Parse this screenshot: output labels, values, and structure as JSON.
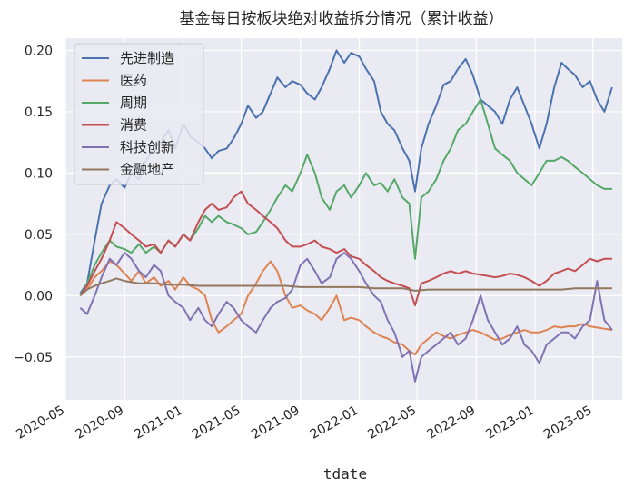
{
  "chart_data": {
    "type": "line",
    "title": "基金每日按板块绝对收益拆分情况（累计收益）",
    "xlabel": "tdate",
    "ylabel": "",
    "ylim": [
      -0.085,
      0.21
    ],
    "xlim": [
      "2020-05-01",
      "2023-07-01"
    ],
    "grid": true,
    "legend_position": "upper-left",
    "yticks": [
      -0.05,
      0.0,
      0.05,
      0.1,
      0.15,
      0.2
    ],
    "ytick_labels": [
      "−0.05",
      "0.00",
      "0.05",
      "0.10",
      "0.15",
      "0.20"
    ],
    "xticks": [
      "2020-05-01",
      "2020-09-01",
      "2021-01-01",
      "2021-05-01",
      "2021-09-01",
      "2022-01-01",
      "2022-05-01",
      "2022-09-01",
      "2023-01-01",
      "2023-05-01"
    ],
    "xtick_labels": [
      "2020-05",
      "2020-09",
      "2021-01",
      "2021-05",
      "2021-09",
      "2022-01",
      "2022-05",
      "2022-09",
      "2023-01",
      "2023-05"
    ],
    "series": [
      {
        "name": "先进制造",
        "color": "#4c72b0",
        "x": [
          "2020-06-01",
          "2020-06-15",
          "2020-07-01",
          "2020-07-15",
          "2020-08-01",
          "2020-08-15",
          "2020-09-01",
          "2020-09-15",
          "2020-10-01",
          "2020-10-15",
          "2020-11-01",
          "2020-11-15",
          "2020-12-01",
          "2020-12-15",
          "2021-01-01",
          "2021-01-15",
          "2021-02-01",
          "2021-02-15",
          "2021-03-01",
          "2021-03-15",
          "2021-04-01",
          "2021-04-15",
          "2021-05-01",
          "2021-05-15",
          "2021-06-01",
          "2021-06-15",
          "2021-07-01",
          "2021-07-15",
          "2021-08-01",
          "2021-08-15",
          "2021-09-01",
          "2021-09-15",
          "2021-10-01",
          "2021-10-15",
          "2021-11-01",
          "2021-11-15",
          "2021-12-01",
          "2021-12-15",
          "2022-01-01",
          "2022-01-15",
          "2022-02-01",
          "2022-02-15",
          "2022-03-01",
          "2022-03-15",
          "2022-04-01",
          "2022-04-15",
          "2022-04-27",
          "2022-05-10",
          "2022-05-25",
          "2022-06-10",
          "2022-06-25",
          "2022-07-10",
          "2022-07-25",
          "2022-08-10",
          "2022-08-25",
          "2022-09-10",
          "2022-09-25",
          "2022-10-10",
          "2022-10-25",
          "2022-11-10",
          "2022-11-25",
          "2022-12-10",
          "2022-12-25",
          "2023-01-10",
          "2023-01-25",
          "2023-02-10",
          "2023-02-25",
          "2023-03-10",
          "2023-03-25",
          "2023-04-10",
          "2023-04-25",
          "2023-05-10",
          "2023-05-25",
          "2023-06-10"
        ],
        "values": [
          0.002,
          0.01,
          0.045,
          0.075,
          0.09,
          0.095,
          0.088,
          0.1,
          0.095,
          0.11,
          0.12,
          0.125,
          0.135,
          0.12,
          0.14,
          0.13,
          0.125,
          0.12,
          0.112,
          0.118,
          0.12,
          0.128,
          0.14,
          0.155,
          0.145,
          0.15,
          0.165,
          0.178,
          0.17,
          0.175,
          0.172,
          0.165,
          0.16,
          0.17,
          0.185,
          0.2,
          0.19,
          0.198,
          0.195,
          0.185,
          0.175,
          0.15,
          0.14,
          0.135,
          0.12,
          0.11,
          0.085,
          0.12,
          0.14,
          0.155,
          0.172,
          0.175,
          0.185,
          0.193,
          0.18,
          0.16,
          0.155,
          0.15,
          0.14,
          0.16,
          0.17,
          0.155,
          0.14,
          0.12,
          0.14,
          0.17,
          0.19,
          0.185,
          0.18,
          0.17,
          0.175,
          0.16,
          0.15,
          0.17
        ]
      },
      {
        "name": "医药",
        "color": "#dd8452",
        "x": [
          "2020-06-01",
          "2020-06-15",
          "2020-07-01",
          "2020-07-15",
          "2020-08-01",
          "2020-08-15",
          "2020-09-01",
          "2020-09-15",
          "2020-10-01",
          "2020-10-15",
          "2020-11-01",
          "2020-11-15",
          "2020-12-01",
          "2020-12-15",
          "2021-01-01",
          "2021-01-15",
          "2021-02-01",
          "2021-02-15",
          "2021-03-01",
          "2021-03-15",
          "2021-04-01",
          "2021-04-15",
          "2021-05-01",
          "2021-05-15",
          "2021-06-01",
          "2021-06-15",
          "2021-07-01",
          "2021-07-15",
          "2021-08-01",
          "2021-08-15",
          "2021-09-01",
          "2021-09-15",
          "2021-10-01",
          "2021-10-15",
          "2021-11-01",
          "2021-11-15",
          "2021-12-01",
          "2021-12-15",
          "2022-01-01",
          "2022-01-15",
          "2022-02-01",
          "2022-02-15",
          "2022-03-01",
          "2022-03-15",
          "2022-04-01",
          "2022-04-15",
          "2022-04-27",
          "2022-05-10",
          "2022-05-25",
          "2022-06-10",
          "2022-06-25",
          "2022-07-10",
          "2022-07-25",
          "2022-08-10",
          "2022-08-25",
          "2022-09-10",
          "2022-09-25",
          "2022-10-10",
          "2022-10-25",
          "2022-11-10",
          "2022-11-25",
          "2022-12-10",
          "2022-12-25",
          "2023-01-10",
          "2023-01-25",
          "2023-02-10",
          "2023-02-25",
          "2023-03-10",
          "2023-03-25",
          "2023-04-10",
          "2023-04-25",
          "2023-05-10",
          "2023-05-25",
          "2023-06-10"
        ],
        "values": [
          0.0,
          0.005,
          0.015,
          0.02,
          0.028,
          0.025,
          0.018,
          0.012,
          0.02,
          0.01,
          0.015,
          0.008,
          0.012,
          0.005,
          0.015,
          0.008,
          0.005,
          0.0,
          -0.02,
          -0.03,
          -0.025,
          -0.02,
          -0.015,
          0.0,
          0.01,
          0.02,
          0.028,
          0.02,
          0.0,
          -0.01,
          -0.008,
          -0.012,
          -0.015,
          -0.02,
          -0.01,
          0.0,
          -0.02,
          -0.018,
          -0.02,
          -0.025,
          -0.03,
          -0.033,
          -0.035,
          -0.038,
          -0.04,
          -0.045,
          -0.048,
          -0.04,
          -0.035,
          -0.03,
          -0.033,
          -0.035,
          -0.032,
          -0.03,
          -0.028,
          -0.03,
          -0.033,
          -0.036,
          -0.035,
          -0.032,
          -0.03,
          -0.028,
          -0.03,
          -0.03,
          -0.028,
          -0.025,
          -0.026,
          -0.025,
          -0.025,
          -0.023,
          -0.025,
          -0.026,
          -0.027,
          -0.028
        ]
      },
      {
        "name": "周期",
        "color": "#55a868",
        "x": [
          "2020-06-01",
          "2020-06-15",
          "2020-07-01",
          "2020-07-15",
          "2020-08-01",
          "2020-08-15",
          "2020-09-01",
          "2020-09-15",
          "2020-10-01",
          "2020-10-15",
          "2020-11-01",
          "2020-11-15",
          "2020-12-01",
          "2020-12-15",
          "2021-01-01",
          "2021-01-15",
          "2021-02-01",
          "2021-02-15",
          "2021-03-01",
          "2021-03-15",
          "2021-04-01",
          "2021-04-15",
          "2021-05-01",
          "2021-05-15",
          "2021-06-01",
          "2021-06-15",
          "2021-07-01",
          "2021-07-15",
          "2021-08-01",
          "2021-08-15",
          "2021-09-01",
          "2021-09-15",
          "2021-10-01",
          "2021-10-15",
          "2021-11-01",
          "2021-11-15",
          "2021-12-01",
          "2021-12-15",
          "2022-01-01",
          "2022-01-15",
          "2022-02-01",
          "2022-02-15",
          "2022-03-01",
          "2022-03-15",
          "2022-04-01",
          "2022-04-15",
          "2022-04-27",
          "2022-05-10",
          "2022-05-25",
          "2022-06-10",
          "2022-06-25",
          "2022-07-10",
          "2022-07-25",
          "2022-08-10",
          "2022-08-25",
          "2022-09-10",
          "2022-09-25",
          "2022-10-10",
          "2022-10-25",
          "2022-11-10",
          "2022-11-25",
          "2022-12-10",
          "2022-12-25",
          "2023-01-10",
          "2023-01-25",
          "2023-02-10",
          "2023-02-25",
          "2023-03-10",
          "2023-03-25",
          "2023-04-10",
          "2023-04-25",
          "2023-05-10",
          "2023-05-25",
          "2023-06-10"
        ],
        "values": [
          0.0,
          0.01,
          0.025,
          0.035,
          0.045,
          0.04,
          0.038,
          0.035,
          0.042,
          0.035,
          0.04,
          0.035,
          0.045,
          0.04,
          0.05,
          0.045,
          0.055,
          0.065,
          0.06,
          0.065,
          0.06,
          0.058,
          0.055,
          0.05,
          0.052,
          0.06,
          0.07,
          0.08,
          0.09,
          0.085,
          0.1,
          0.115,
          0.1,
          0.08,
          0.07,
          0.085,
          0.09,
          0.08,
          0.09,
          0.1,
          0.09,
          0.092,
          0.085,
          0.095,
          0.08,
          0.075,
          0.03,
          0.08,
          0.085,
          0.095,
          0.11,
          0.12,
          0.135,
          0.14,
          0.15,
          0.16,
          0.14,
          0.12,
          0.115,
          0.11,
          0.1,
          0.095,
          0.09,
          0.1,
          0.11,
          0.11,
          0.113,
          0.11,
          0.105,
          0.1,
          0.095,
          0.09,
          0.087,
          0.087
        ]
      },
      {
        "name": "消费",
        "color": "#c44e52",
        "x": [
          "2020-06-01",
          "2020-06-15",
          "2020-07-01",
          "2020-07-15",
          "2020-08-01",
          "2020-08-15",
          "2020-09-01",
          "2020-09-15",
          "2020-10-01",
          "2020-10-15",
          "2020-11-01",
          "2020-11-15",
          "2020-12-01",
          "2020-12-15",
          "2021-01-01",
          "2021-01-15",
          "2021-02-01",
          "2021-02-15",
          "2021-03-01",
          "2021-03-15",
          "2021-04-01",
          "2021-04-15",
          "2021-05-01",
          "2021-05-15",
          "2021-06-01",
          "2021-06-15",
          "2021-07-01",
          "2021-07-15",
          "2021-08-01",
          "2021-08-15",
          "2021-09-01",
          "2021-09-15",
          "2021-10-01",
          "2021-10-15",
          "2021-11-01",
          "2021-11-15",
          "2021-12-01",
          "2021-12-15",
          "2022-01-01",
          "2022-01-15",
          "2022-02-01",
          "2022-02-15",
          "2022-03-01",
          "2022-03-15",
          "2022-04-01",
          "2022-04-15",
          "2022-04-27",
          "2022-05-10",
          "2022-05-25",
          "2022-06-10",
          "2022-06-25",
          "2022-07-10",
          "2022-07-25",
          "2022-08-10",
          "2022-08-25",
          "2022-09-10",
          "2022-09-25",
          "2022-10-10",
          "2022-10-25",
          "2022-11-10",
          "2022-11-25",
          "2022-12-10",
          "2022-12-25",
          "2023-01-10",
          "2023-01-25",
          "2023-02-10",
          "2023-02-25",
          "2023-03-10",
          "2023-03-25",
          "2023-04-10",
          "2023-04-25",
          "2023-05-10",
          "2023-05-25",
          "2023-06-10"
        ],
        "values": [
          0.0,
          0.008,
          0.02,
          0.03,
          0.045,
          0.06,
          0.055,
          0.05,
          0.045,
          0.04,
          0.042,
          0.035,
          0.045,
          0.04,
          0.05,
          0.045,
          0.06,
          0.07,
          0.075,
          0.07,
          0.072,
          0.08,
          0.085,
          0.075,
          0.07,
          0.065,
          0.06,
          0.055,
          0.045,
          0.04,
          0.04,
          0.042,
          0.045,
          0.04,
          0.038,
          0.035,
          0.038,
          0.032,
          0.03,
          0.025,
          0.02,
          0.015,
          0.012,
          0.01,
          0.008,
          0.006,
          -0.008,
          0.01,
          0.012,
          0.015,
          0.018,
          0.02,
          0.018,
          0.02,
          0.018,
          0.017,
          0.016,
          0.015,
          0.016,
          0.018,
          0.017,
          0.015,
          0.012,
          0.008,
          0.012,
          0.018,
          0.02,
          0.022,
          0.02,
          0.025,
          0.03,
          0.028,
          0.03,
          0.03
        ]
      },
      {
        "name": "科技创新",
        "color": "#8172b3",
        "x": [
          "2020-06-01",
          "2020-06-15",
          "2020-07-01",
          "2020-07-15",
          "2020-08-01",
          "2020-08-15",
          "2020-09-01",
          "2020-09-15",
          "2020-10-01",
          "2020-10-15",
          "2020-11-01",
          "2020-11-15",
          "2020-12-01",
          "2020-12-15",
          "2021-01-01",
          "2021-01-15",
          "2021-02-01",
          "2021-02-15",
          "2021-03-01",
          "2021-03-15",
          "2021-04-01",
          "2021-04-15",
          "2021-05-01",
          "2021-05-15",
          "2021-06-01",
          "2021-06-15",
          "2021-07-01",
          "2021-07-15",
          "2021-08-01",
          "2021-08-15",
          "2021-09-01",
          "2021-09-15",
          "2021-10-01",
          "2021-10-15",
          "2021-11-01",
          "2021-11-15",
          "2021-12-01",
          "2021-12-15",
          "2022-01-01",
          "2022-01-15",
          "2022-02-01",
          "2022-02-15",
          "2022-03-01",
          "2022-03-15",
          "2022-04-01",
          "2022-04-15",
          "2022-04-27",
          "2022-05-10",
          "2022-05-25",
          "2022-06-10",
          "2022-06-25",
          "2022-07-10",
          "2022-07-25",
          "2022-08-10",
          "2022-08-25",
          "2022-09-10",
          "2022-09-25",
          "2022-10-10",
          "2022-10-25",
          "2022-11-10",
          "2022-11-25",
          "2022-12-10",
          "2022-12-25",
          "2023-01-10",
          "2023-01-25",
          "2023-02-10",
          "2023-02-25",
          "2023-03-10",
          "2023-03-25",
          "2023-04-10",
          "2023-04-25",
          "2023-05-10",
          "2023-05-25",
          "2023-06-10"
        ],
        "values": [
          -0.01,
          -0.015,
          0.0,
          0.015,
          0.03,
          0.025,
          0.035,
          0.03,
          0.02,
          0.015,
          0.025,
          0.02,
          0.0,
          -0.005,
          -0.01,
          -0.02,
          -0.01,
          -0.02,
          -0.025,
          -0.015,
          -0.005,
          -0.01,
          -0.02,
          -0.025,
          -0.03,
          -0.02,
          -0.01,
          -0.005,
          -0.002,
          0.005,
          0.025,
          0.03,
          0.02,
          0.01,
          0.015,
          0.03,
          0.035,
          0.03,
          0.02,
          0.01,
          0.0,
          -0.005,
          -0.02,
          -0.03,
          -0.05,
          -0.045,
          -0.07,
          -0.05,
          -0.045,
          -0.04,
          -0.035,
          -0.03,
          -0.04,
          -0.035,
          -0.02,
          0.0,
          -0.02,
          -0.03,
          -0.04,
          -0.035,
          -0.025,
          -0.04,
          -0.045,
          -0.055,
          -0.04,
          -0.035,
          -0.03,
          -0.03,
          -0.035,
          -0.025,
          -0.02,
          0.012,
          -0.02,
          -0.028
        ]
      },
      {
        "name": "金融地产",
        "color": "#937860",
        "x": [
          "2020-06-01",
          "2020-06-15",
          "2020-07-01",
          "2020-07-15",
          "2020-08-01",
          "2020-08-15",
          "2020-09-01",
          "2020-09-15",
          "2020-10-01",
          "2020-11-01",
          "2020-12-01",
          "2021-01-01",
          "2021-02-01",
          "2021-03-01",
          "2021-04-01",
          "2021-05-01",
          "2021-06-01",
          "2021-07-01",
          "2021-08-01",
          "2021-09-01",
          "2021-10-01",
          "2021-11-01",
          "2021-12-01",
          "2022-01-01",
          "2022-02-01",
          "2022-03-01",
          "2022-04-01",
          "2022-04-27",
          "2022-05-25",
          "2022-06-25",
          "2022-07-25",
          "2022-08-25",
          "2022-09-25",
          "2022-10-25",
          "2022-11-25",
          "2022-12-25",
          "2023-01-25",
          "2023-02-25",
          "2023-03-25",
          "2023-04-25",
          "2023-05-25",
          "2023-06-10"
        ],
        "values": [
          0.0,
          0.005,
          0.008,
          0.01,
          0.012,
          0.014,
          0.012,
          0.011,
          0.01,
          0.01,
          0.009,
          0.009,
          0.008,
          0.008,
          0.008,
          0.008,
          0.008,
          0.008,
          0.008,
          0.007,
          0.007,
          0.007,
          0.007,
          0.007,
          0.006,
          0.006,
          0.006,
          0.004,
          0.005,
          0.005,
          0.005,
          0.005,
          0.005,
          0.005,
          0.005,
          0.005,
          0.005,
          0.005,
          0.006,
          0.006,
          0.006,
          0.006
        ]
      }
    ]
  }
}
